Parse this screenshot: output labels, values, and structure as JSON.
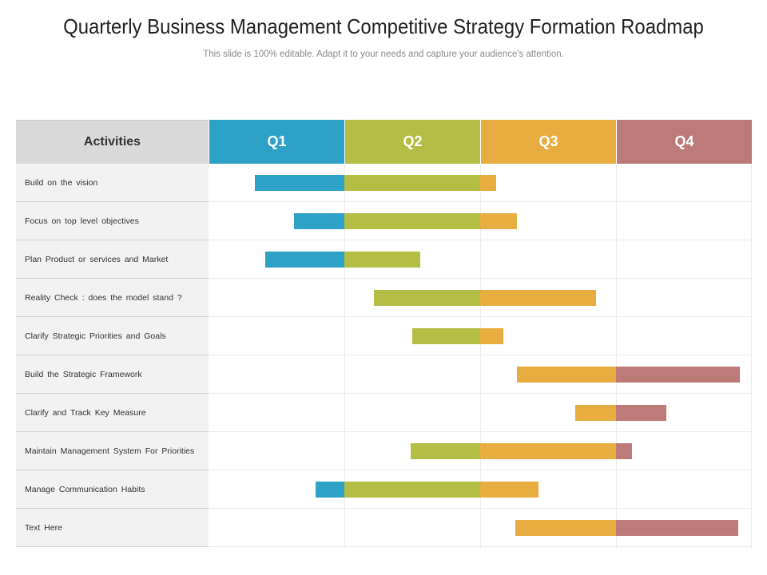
{
  "title": "Quarterly Business Management Competitive Strategy Formation Roadmap",
  "subtitle": "This slide is 100% editable. Adapt it to your needs and capture your audience's attention.",
  "chart_data": {
    "type": "bar",
    "subtype": "gantt",
    "row_header": "Activities",
    "quarters": [
      {
        "label": "Q1",
        "color": "#2ea2c6"
      },
      {
        "label": "Q2",
        "color": "#b4bd44"
      },
      {
        "label": "Q3",
        "color": "#e8ad40"
      },
      {
        "label": "Q4",
        "color": "#bc7b78"
      }
    ],
    "x_range": [
      0,
      4
    ],
    "grid": true,
    "tasks": [
      {
        "label": "Build on the vision",
        "start": 0.34,
        "end": 2.12
      },
      {
        "label": "Focus on top level objectives",
        "start": 0.63,
        "end": 2.27
      },
      {
        "label": "Plan Product or services  and Market",
        "start": 0.42,
        "end": 1.56
      },
      {
        "label": "Reality Check : does the model stand ?",
        "start": 1.22,
        "end": 2.85
      },
      {
        "label": "Clarify Strategic  Priorities  and Goals",
        "start": 1.5,
        "end": 2.17
      },
      {
        "label": "Build the Strategic  Framework",
        "start": 2.27,
        "end": 3.91
      },
      {
        "label": "Clarify and Track Key Measure",
        "start": 2.7,
        "end": 3.37
      },
      {
        "label": "Maintain  Management  System For Priorities",
        "start": 1.49,
        "end": 3.12
      },
      {
        "label": "Manage Communication   Habits",
        "start": 0.79,
        "end": 2.43
      },
      {
        "label": "Text Here",
        "start": 2.26,
        "end": 3.9
      }
    ]
  }
}
